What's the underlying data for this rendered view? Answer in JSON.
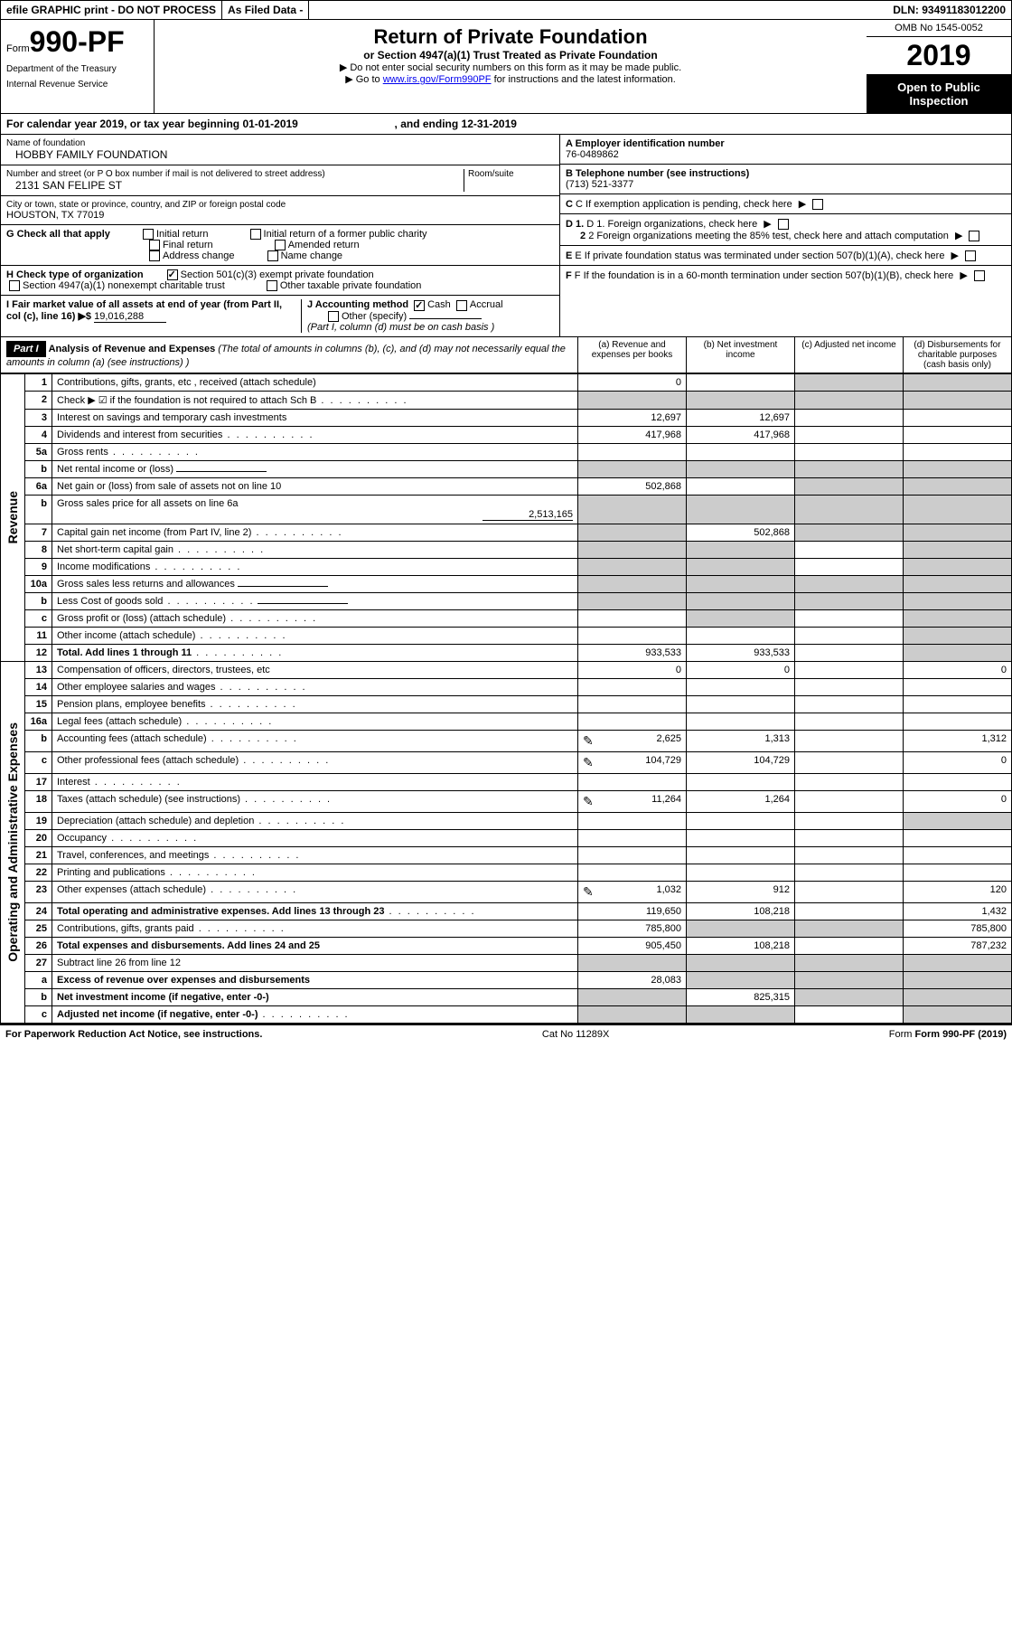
{
  "header_bar": {
    "efile": "efile GRAPHIC print - DO NOT PROCESS",
    "asfiled": "As Filed Data -",
    "dln_label": "DLN:",
    "dln": "93491183012200"
  },
  "form_label": {
    "form_word": "Form",
    "form_no": "990-PF",
    "dept1": "Department of the Treasury",
    "dept2": "Internal Revenue Service"
  },
  "title": {
    "main": "Return of Private Foundation",
    "sub": "or Section 4947(a)(1) Trust Treated as Private Foundation",
    "instr1": "▶ Do not enter social security numbers on this form as it may be made public.",
    "instr2_pre": "▶ Go to ",
    "instr2_link": "www.irs.gov/Form990PF",
    "instr2_post": " for instructions and the latest information."
  },
  "year_box": {
    "omb": "OMB No 1545-0052",
    "year": "2019",
    "open": "Open to Public Inspection"
  },
  "cal_year": {
    "pre": "For calendar year 2019, or tax year beginning ",
    "begin": "01-01-2019",
    "mid": ", and ending ",
    "end": "12-31-2019"
  },
  "left_cells": {
    "name_label": "Name of foundation",
    "name": "HOBBY FAMILY FOUNDATION",
    "addr_label": "Number and street (or P O  box number if mail is not delivered to street address)",
    "room_label": "Room/suite",
    "addr": "2131 SAN FELIPE ST",
    "city_label": "City or town, state or province, country, and ZIP or foreign postal code",
    "city": "HOUSTON, TX  77019",
    "g_label": "G Check all that apply",
    "g_opts": [
      "Initial return",
      "Initial return of a former public charity",
      "Final return",
      "Amended return",
      "Address change",
      "Name change"
    ],
    "h_label": "H Check type of organization",
    "h_501": "Section 501(c)(3) exempt private foundation",
    "h_4947": "Section 4947(a)(1) nonexempt charitable trust",
    "h_other": "Other taxable private foundation",
    "i_label": "I Fair market value of all assets at end of year (from Part II, col  (c), line 16) ▶$",
    "i_val": "19,016,288",
    "j_label": "J Accounting method",
    "j_cash": "Cash",
    "j_accrual": "Accrual",
    "j_other": "Other (specify)",
    "j_note": "(Part I, column (d) must be on cash basis )"
  },
  "right_cells": {
    "a_label": "A Employer identification number",
    "a_val": "76-0489862",
    "b_label": "B Telephone number (see instructions)",
    "b_val": "(713) 521-3377",
    "c_label": "C If exemption application is pending, check here",
    "d1_label": "D 1. Foreign organizations, check here",
    "d2_label": "2 Foreign organizations meeting the 85% test, check here and attach computation",
    "e_label": "E If private foundation status was terminated under section 507(b)(1)(A), check here",
    "f_label": "F If the foundation is in a 60-month termination under section 507(b)(1)(B), check here"
  },
  "part1": {
    "hdr": "Part I",
    "title": "Analysis of Revenue and Expenses",
    "note": "(The total of amounts in columns (b), (c), and (d) may not necessarily equal the amounts in column (a) (see instructions) )",
    "col_a": "(a) Revenue and expenses per books",
    "col_b": "(b) Net investment income",
    "col_c": "(c) Adjusted net income",
    "col_d": "(d) Disbursements for charitable purposes (cash basis only)"
  },
  "vlabels": {
    "revenue": "Revenue",
    "expenses": "Operating and Administrative Expenses"
  },
  "rows": [
    {
      "n": "1",
      "desc": "Contributions, gifts, grants, etc , received (attach schedule)",
      "a": "0",
      "b": "",
      "c_grey": true,
      "d_grey": true
    },
    {
      "n": "2",
      "desc": "Check ▶ ☑ if the foundation is not required to attach Sch  B",
      "dots": true,
      "grey_all": true
    },
    {
      "n": "3",
      "desc": "Interest on savings and temporary cash investments",
      "a": "12,697",
      "b": "12,697"
    },
    {
      "n": "4",
      "desc": "Dividends and interest from securities",
      "dots": true,
      "a": "417,968",
      "b": "417,968"
    },
    {
      "n": "5a",
      "desc": "Gross rents",
      "dots": true
    },
    {
      "n": "b",
      "desc": "Net rental income or (loss)",
      "ul": true,
      "grey_all": true
    },
    {
      "n": "6a",
      "desc": "Net gain or (loss) from sale of assets not on line 10",
      "a": "502,868",
      "c_grey": true,
      "d_grey": true
    },
    {
      "n": "b",
      "desc": "Gross sales price for all assets on line 6a",
      "ul_val": "2,513,165",
      "grey_all": true
    },
    {
      "n": "7",
      "desc": "Capital gain net income (from Part IV, line 2)",
      "dots": true,
      "a_grey": true,
      "b": "502,868",
      "c_grey": true,
      "d_grey": true
    },
    {
      "n": "8",
      "desc": "Net short-term capital gain",
      "dots": true,
      "a_grey": true,
      "b_grey": true,
      "d_grey": true
    },
    {
      "n": "9",
      "desc": "Income modifications",
      "dots": true,
      "a_grey": true,
      "b_grey": true,
      "d_grey": true
    },
    {
      "n": "10a",
      "desc": "Gross sales less returns and allowances",
      "ul": true,
      "grey_all": true
    },
    {
      "n": "b",
      "desc": "Less  Cost of goods sold",
      "dots": true,
      "ul": true,
      "grey_all": true
    },
    {
      "n": "c",
      "desc": "Gross profit or (loss) (attach schedule)",
      "dots": true,
      "b_grey": true,
      "d_grey": true
    },
    {
      "n": "11",
      "desc": "Other income (attach schedule)",
      "dots": true,
      "d_grey": true
    },
    {
      "n": "12",
      "desc": "Total. Add lines 1 through 11",
      "bold": true,
      "dots": true,
      "a": "933,533",
      "b": "933,533",
      "d_grey": true
    },
    {
      "n": "13",
      "desc": "Compensation of officers, directors, trustees, etc",
      "a": "0",
      "b": "0",
      "d": "0"
    },
    {
      "n": "14",
      "desc": "Other employee salaries and wages",
      "dots": true
    },
    {
      "n": "15",
      "desc": "Pension plans, employee benefits",
      "dots": true
    },
    {
      "n": "16a",
      "desc": "Legal fees (attach schedule)",
      "dots": true
    },
    {
      "n": "b",
      "desc": "Accounting fees (attach schedule)",
      "dots": true,
      "icon": true,
      "a": "2,625",
      "b": "1,313",
      "d": "1,312"
    },
    {
      "n": "c",
      "desc": "Other professional fees (attach schedule)",
      "dots": true,
      "icon": true,
      "a": "104,729",
      "b": "104,729",
      "d": "0"
    },
    {
      "n": "17",
      "desc": "Interest",
      "dots": true
    },
    {
      "n": "18",
      "desc": "Taxes (attach schedule) (see instructions)",
      "dots": true,
      "icon": true,
      "a": "11,264",
      "b": "1,264",
      "d": "0"
    },
    {
      "n": "19",
      "desc": "Depreciation (attach schedule) and depletion",
      "dots": true,
      "d_grey": true
    },
    {
      "n": "20",
      "desc": "Occupancy",
      "dots": true
    },
    {
      "n": "21",
      "desc": "Travel, conferences, and meetings",
      "dots": true
    },
    {
      "n": "22",
      "desc": "Printing and publications",
      "dots": true
    },
    {
      "n": "23",
      "desc": "Other expenses (attach schedule)",
      "dots": true,
      "icon": true,
      "a": "1,032",
      "b": "912",
      "d": "120"
    },
    {
      "n": "24",
      "desc": "Total operating and administrative expenses. Add lines 13 through 23",
      "bold": true,
      "dots": true,
      "a": "119,650",
      "b": "108,218",
      "d": "1,432"
    },
    {
      "n": "25",
      "desc": "Contributions, gifts, grants paid",
      "dots": true,
      "a": "785,800",
      "b_grey": true,
      "c_grey": true,
      "d": "785,800"
    },
    {
      "n": "26",
      "desc": "Total expenses and disbursements. Add lines 24 and 25",
      "bold": true,
      "a": "905,450",
      "b": "108,218",
      "d": "787,232"
    },
    {
      "n": "27",
      "desc": "Subtract line 26 from line 12",
      "grey_all": true
    },
    {
      "n": "a",
      "desc": "Excess of revenue over expenses and disbursements",
      "bold": true,
      "a": "28,083",
      "b_grey": true,
      "c_grey": true,
      "d_grey": true
    },
    {
      "n": "b",
      "desc": "Net investment income (if negative, enter -0-)",
      "bold": true,
      "a_grey": true,
      "b": "825,315",
      "c_grey": true,
      "d_grey": true
    },
    {
      "n": "c",
      "desc": "Adjusted net income (if negative, enter -0-)",
      "bold": true,
      "dots": true,
      "a_grey": true,
      "b_grey": true,
      "d_grey": true
    }
  ],
  "footer": {
    "left": "For Paperwork Reduction Act Notice, see instructions.",
    "mid": "Cat No 11289X",
    "right": "Form 990-PF (2019)"
  }
}
